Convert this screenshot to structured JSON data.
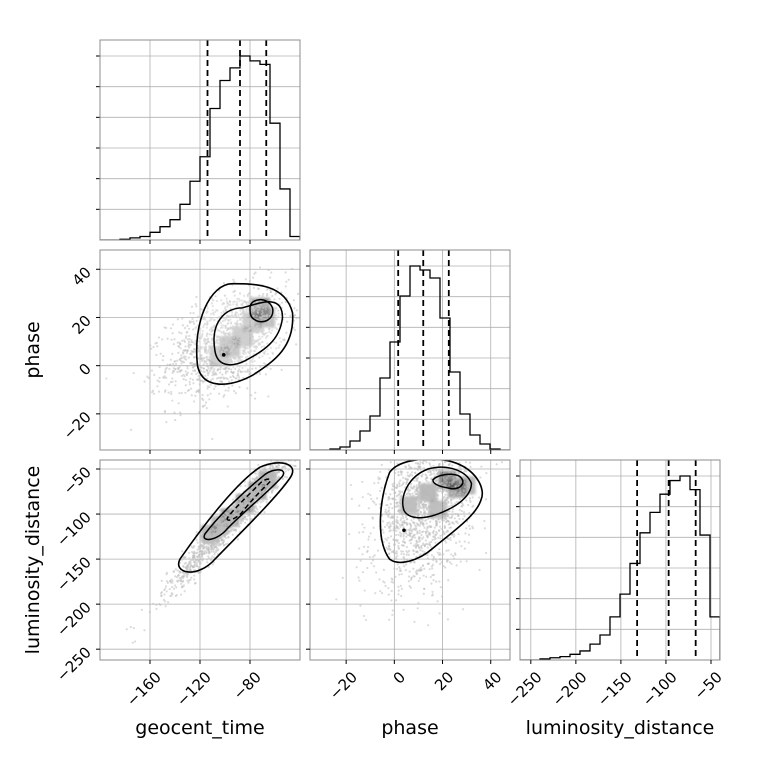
{
  "chart_data": {
    "type": "corner",
    "parameters": [
      {
        "name": "geocent_time",
        "xlabel": "geocent_time",
        "range": [
          -200,
          -40
        ],
        "ticks": [
          -160,
          -120,
          -80
        ],
        "tick_labels": [
          "−160",
          "−120",
          "−80"
        ],
        "quantiles": [
          -114,
          -88,
          -67
        ]
      },
      {
        "name": "phase",
        "xlabel": "phase",
        "ylabel": "phase",
        "range": [
          -35,
          48
        ],
        "ticks": [
          -20,
          0,
          20,
          40
        ],
        "tick_labels": [
          "−20",
          "0",
          "20",
          "40"
        ],
        "quantiles": [
          1.6,
          12,
          22.6
        ]
      },
      {
        "name": "luminosity_distance",
        "xlabel": "luminosity_distance",
        "ylabel": "luminosity_distance",
        "range": [
          -262,
          -40
        ],
        "ticks": [
          -250,
          -200,
          -150,
          -100,
          -50
        ],
        "tick_labels": [
          "−250",
          "−200",
          "−150",
          "−100",
          "−50"
        ],
        "quantiles": [
          -132,
          -97,
          -67
        ]
      }
    ],
    "histograms": [
      {
        "param": "geocent_time",
        "bin_edges": [
          -200,
          -192,
          -184,
          -176,
          -168,
          -160,
          -152,
          -144,
          -136,
          -128,
          -120,
          -112,
          -104,
          -96,
          -88,
          -80,
          -72,
          -64,
          -56,
          -48,
          -40
        ],
        "counts": [
          0,
          0,
          1,
          3,
          5,
          11,
          19,
          29,
          51,
          84,
          119,
          188,
          228,
          246,
          263,
          256,
          251,
          167,
          73,
          5
        ]
      },
      {
        "param": "phase",
        "bin_edges": [
          -35,
          -30.85,
          -26.7,
          -22.55,
          -18.4,
          -14.25,
          -10.1,
          -5.95,
          -1.8,
          2.35,
          6.5,
          10.65,
          14.8,
          18.95,
          23.1,
          27.25,
          31.4,
          35.55,
          39.7,
          43.85,
          48
        ],
        "counts": [
          0,
          0,
          1,
          3,
          9,
          19,
          34,
          72,
          108,
          154,
          184,
          180,
          172,
          132,
          78,
          36,
          15,
          6,
          1,
          0
        ]
      },
      {
        "param": "luminosity_distance",
        "bin_edges": [
          -262,
          -250.9,
          -239.8,
          -228.7,
          -217.6,
          -206.5,
          -195.4,
          -184.3,
          -173.2,
          -162.1,
          -151,
          -139.9,
          -128.8,
          -117.7,
          -106.6,
          -95.5,
          -84.4,
          -73.3,
          -62.2,
          -51.1,
          -40
        ],
        "counts": [
          0,
          0,
          1,
          2,
          3,
          5,
          8,
          14,
          22,
          38,
          58,
          85,
          112,
          130,
          146,
          158,
          162,
          150,
          110,
          38
        ]
      }
    ],
    "pairs": [
      {
        "x": "geocent_time",
        "y": "phase",
        "density_peaks": [
          [
            -74,
            25
          ],
          [
            -98,
            7
          ]
        ],
        "contour_levels": 3
      },
      {
        "x": "geocent_time",
        "y": "luminosity_distance",
        "density_peaks": [
          [
            -84,
            -85
          ],
          [
            -68,
            -62
          ]
        ],
        "contour_levels": 3
      },
      {
        "x": "phase",
        "y": "luminosity_distance",
        "density_peaks": [
          [
            24,
            -65
          ],
          [
            14,
            -75
          ]
        ],
        "contour_levels": 3
      }
    ],
    "grid": true,
    "colors": {
      "scatter": "#bdbdbd",
      "density": "#000000",
      "line": "#000000",
      "grid": "#b0b0b0",
      "frame": "#8c8c8c"
    }
  }
}
